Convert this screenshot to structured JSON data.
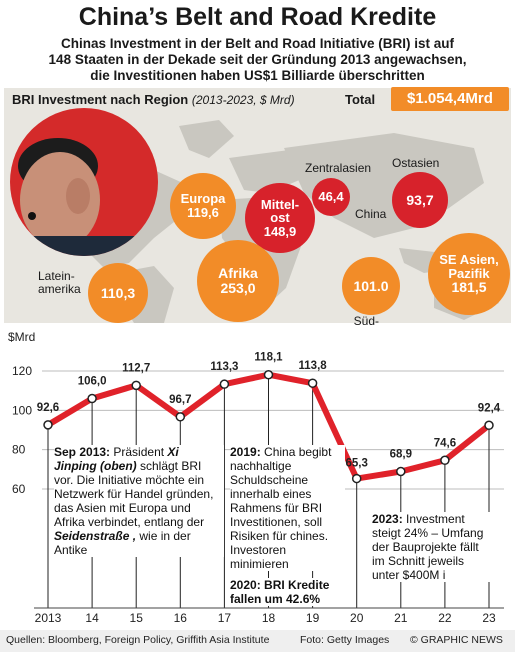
{
  "title": "China’s Belt and Road Kredite",
  "subtitle": "Chinas Investment in der Belt and Road Initiative (BRI) ist auf\n148 Staaten in der Dekade seit der Gründung 2013 angewachsen,\ndie Investitionen haben  US$1 Billiarde überschritten",
  "map": {
    "heading": "BRI Investment nach Region",
    "period": "(2013-2023, $ Mrd)",
    "total_label": "Total",
    "total_value": "$1.054,4Mrd",
    "regions": [
      {
        "label": "Europa",
        "value": "119,6"
      },
      {
        "label": "Mittel-\nost",
        "value": "148,9"
      },
      {
        "label": "Afrika",
        "value": "253,0"
      },
      {
        "label": "",
        "value": "46,4"
      },
      {
        "label": "",
        "value": "93,7"
      },
      {
        "label": "SE Asien,\nPazifik",
        "value": "181,5"
      },
      {
        "label": "",
        "value": "101.0"
      },
      {
        "label": "",
        "value": "110,3"
      }
    ],
    "place_labels": {
      "zentralasien": "Zentralasien",
      "ostasien": "Ostasien",
      "china": "China",
      "suedasien": "Süd-\nasien",
      "lateinamerika": "Latein-\namerika"
    },
    "colors": {
      "bubble_orange": "#f28c28",
      "bubble_red": "#d7222b",
      "land": "#c9c7c0"
    }
  },
  "chart_data": {
    "type": "line",
    "ylabel": "$Mrd",
    "yticks": [
      "120",
      "100",
      "80",
      "60"
    ],
    "ylim": [
      40,
      135
    ],
    "x_labels": [
      "2013",
      "14",
      "15",
      "16",
      "17",
      "18",
      "19",
      "20",
      "21",
      "22",
      "23"
    ],
    "points": [
      {
        "x": 2013,
        "y": 92.6,
        "label": "92,6"
      },
      {
        "x": 2014,
        "y": 106.0,
        "label": "106,0"
      },
      {
        "x": 2015,
        "y": 112.7,
        "label": "112,7"
      },
      {
        "x": 2016,
        "y": 96.7,
        "label": "96,7"
      },
      {
        "x": 2017,
        "y": 113.3,
        "label": "113,3"
      },
      {
        "x": 2018,
        "y": 118.1,
        "label": "118,1"
      },
      {
        "x": 2019,
        "y": 113.8,
        "label": "113,8"
      },
      {
        "x": 2020,
        "y": 65.3,
        "label": "65,3"
      },
      {
        "x": 2021,
        "y": 68.9,
        "label": "68,9"
      },
      {
        "x": 2022,
        "y": 74.6,
        "label": "74,6"
      },
      {
        "x": 2023,
        "y": 92.4,
        "label": "92,4"
      }
    ],
    "line_color": "#e0222a",
    "grid": true
  },
  "annotations": {
    "sep2013": {
      "head": "Sep 2013:",
      "t1": " Präsident ",
      "name": "Xi Jinping (oben)",
      "t2": " schlägt BRI vor. Die Initiative möchte ein Netzwerk für Handel gründen, das Asien mit Europa und Afrika verbindet, entlang der ",
      "road": "Seidenstraße ,",
      "t3": " wie in der Antike"
    },
    "y2019": {
      "head": "2019:",
      "text": " China begibt nachhaltige Schuldscheine innerhalb eines Rahmens für BRI Investitionen, soll Risiken für chines. Investoren minimieren"
    },
    "y2020": {
      "head": "2020: BRI Kredite fallen um 42.6%"
    },
    "y2023": {
      "head": "2023:",
      "text": " Investment steigt 24% – Umfang der Bauprojekte fällt im Schnitt jeweils unter $400M i"
    }
  },
  "footer": {
    "sources": "Quellen: Bloomberg, Foreign Policy, Griffith Asia Institute",
    "photo": "Foto: Getty Images",
    "credit": "© GRAPHIC NEWS"
  }
}
